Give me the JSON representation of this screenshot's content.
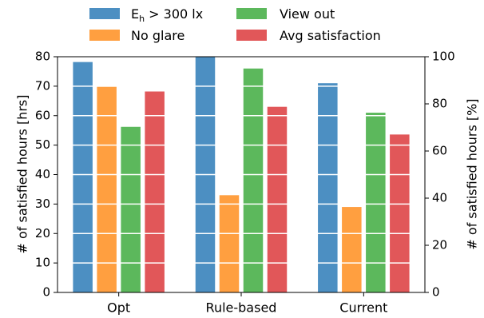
{
  "chart_data": {
    "type": "bar",
    "categories": [
      "Opt",
      "Rule-based",
      "Current"
    ],
    "series": [
      {
        "name_main": "E",
        "name_sub": "h",
        "name_rest": " > 300 lx",
        "color": "#4c8fc2",
        "values": [
          78.2,
          80.5,
          71.0
        ]
      },
      {
        "name": "No glare",
        "color": "#ff9f40",
        "values": [
          69.8,
          33.0,
          29.0
        ]
      },
      {
        "name": "View out",
        "color": "#5cb85c",
        "values": [
          56.2,
          76.0,
          61.0
        ]
      },
      {
        "name": "Avg satisfaction",
        "color": "#e15759",
        "values": [
          68.2,
          63.0,
          53.6
        ]
      }
    ],
    "ylabel": "# of satisfied hours [hrs]",
    "ylabel_right": "# of satisfied hours [%]",
    "ylim": [
      0,
      80
    ],
    "ylim_right": [
      0,
      100
    ],
    "yticks": [
      "0",
      "10",
      "20",
      "30",
      "40",
      "50",
      "60",
      "70",
      "80"
    ],
    "yticks_right": [
      "0",
      "20",
      "40",
      "60",
      "80",
      "100"
    ],
    "grid": "horizontal white lines over bars",
    "legend_position": "top"
  }
}
